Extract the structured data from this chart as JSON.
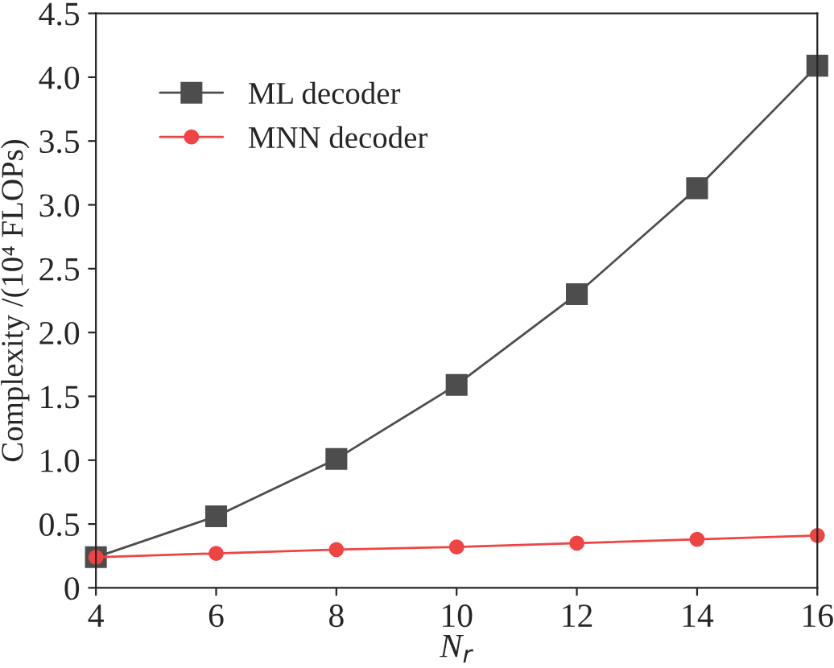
{
  "chart_data": {
    "type": "line",
    "xlabel": "N$_{r}$",
    "ylabel": "Complexity /(10⁴ FLOPs)",
    "x": [
      4,
      6,
      8,
      10,
      12,
      14,
      16
    ],
    "series": [
      {
        "name": "ML decoder",
        "color": "#4d4d4d",
        "marker": "square",
        "values": [
          0.24,
          0.56,
          1.01,
          1.59,
          2.3,
          3.13,
          4.09
        ]
      },
      {
        "name": "MNN decoder",
        "color": "#ee4444",
        "marker": "circle",
        "values": [
          0.24,
          0.27,
          0.3,
          0.32,
          0.35,
          0.38,
          0.41
        ]
      }
    ],
    "xlim": [
      4,
      16
    ],
    "xticks": [
      4,
      6,
      8,
      10,
      12,
      14,
      16
    ],
    "ylim": [
      0,
      4.5
    ],
    "yticks": [
      0,
      {
        "value": 0.5,
        "label": "0.5"
      },
      {
        "value": 1.0,
        "label": "1.0"
      },
      {
        "value": 1.5,
        "label": "1.5"
      },
      {
        "value": 2.0,
        "label": "2.0"
      },
      {
        "value": 2.5,
        "label": "2.5"
      },
      {
        "value": 3.0,
        "label": "3.0"
      },
      {
        "value": 3.5,
        "label": "3.5"
      },
      {
        "value": 4.0,
        "label": "4.0"
      },
      {
        "value": 4.5,
        "label": "4.5"
      }
    ],
    "grid": false,
    "legend": "top left",
    "line_style": "solid"
  }
}
